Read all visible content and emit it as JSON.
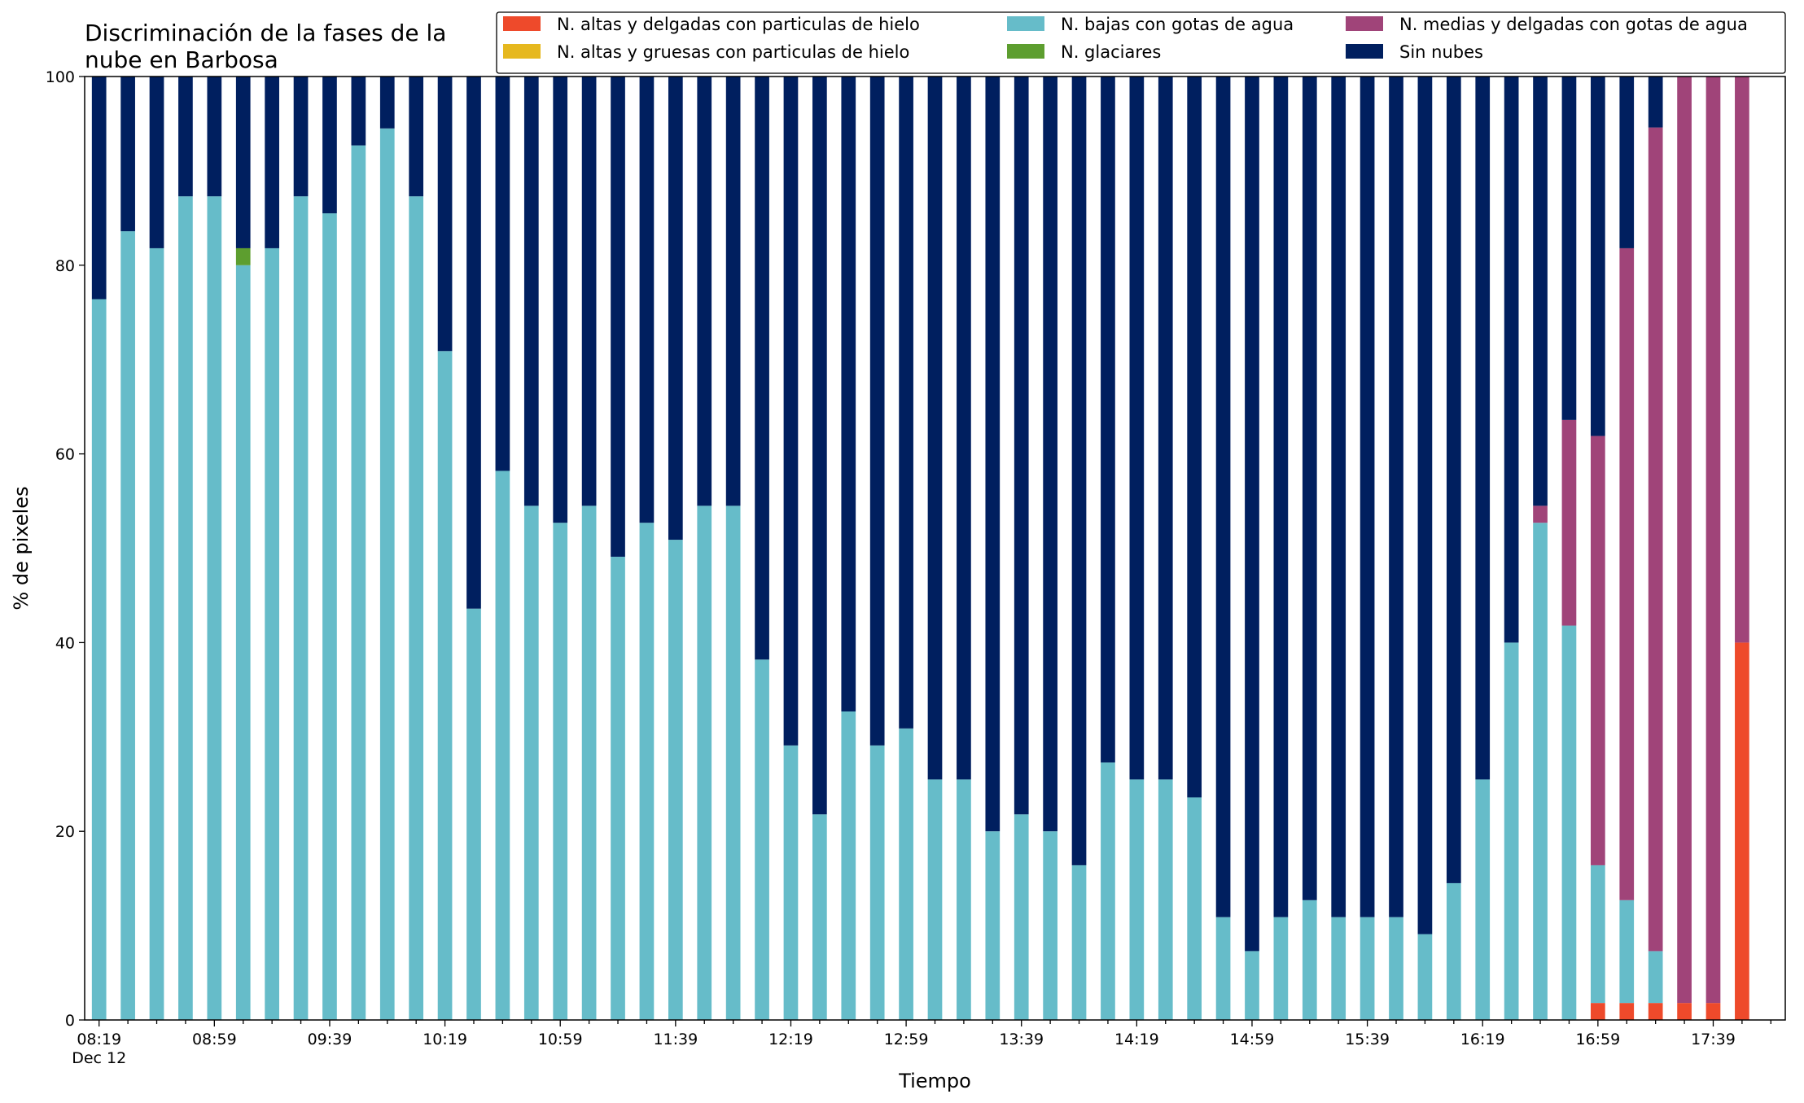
{
  "chart_data": {
    "type": "bar",
    "stacked": true,
    "title": "Discriminación de la fases de la nube en Barbosa",
    "title_lines": [
      "Discriminación de la fases de la",
      "nube en Barbosa"
    ],
    "xlabel": "Tiempo",
    "ylabel": "% de pixeles",
    "ylim": [
      0,
      100
    ],
    "yticks": [
      0,
      20,
      40,
      60,
      80,
      100
    ],
    "x_tick_labels": [
      {
        "index": 0,
        "label": "08:19",
        "sublabel": "Dec 12"
      },
      {
        "index": 4,
        "label": "08:59"
      },
      {
        "index": 8,
        "label": "09:39"
      },
      {
        "index": 12,
        "label": "10:19"
      },
      {
        "index": 16,
        "label": "10:59"
      },
      {
        "index": 20,
        "label": "11:39"
      },
      {
        "index": 24,
        "label": "12:19"
      },
      {
        "index": 28,
        "label": "12:59"
      },
      {
        "index": 32,
        "label": "13:39"
      },
      {
        "index": 36,
        "label": "14:19"
      },
      {
        "index": 40,
        "label": "14:59"
      },
      {
        "index": 44,
        "label": "15:39"
      },
      {
        "index": 48,
        "label": "16:19"
      },
      {
        "index": 52,
        "label": "16:59"
      },
      {
        "index": 56,
        "label": "17:39"
      }
    ],
    "legend_placement": "top-right",
    "grid": false,
    "series": [
      {
        "name": "N. altas y delgadas con particulas de hielo",
        "color": "#ee4a2b",
        "values": [
          0,
          0,
          0,
          0,
          0,
          0,
          0,
          0,
          0,
          0,
          0,
          0,
          0,
          0,
          0,
          0,
          0,
          0,
          0,
          0,
          0,
          0,
          0,
          0,
          0,
          0,
          0,
          0,
          0,
          0,
          0,
          0,
          0,
          0,
          0,
          0,
          0,
          0,
          0,
          0,
          0,
          0,
          0,
          0,
          0,
          0,
          0,
          0,
          0,
          0,
          0,
          0,
          1.8,
          1.8,
          1.8,
          1.8,
          1.8,
          40
        ]
      },
      {
        "name": "N. altas y gruesas con particulas de hielo",
        "color": "#e6b81e",
        "values": [
          0,
          0,
          0,
          0,
          0,
          0,
          0,
          0,
          0,
          0,
          0,
          0,
          0,
          0,
          0,
          0,
          0,
          0,
          0,
          0,
          0,
          0,
          0,
          0,
          0,
          0,
          0,
          0,
          0,
          0,
          0,
          0,
          0,
          0,
          0,
          0,
          0,
          0,
          0,
          0,
          0,
          0,
          0,
          0,
          0,
          0,
          0,
          0,
          0,
          0,
          0,
          0,
          0,
          0,
          0,
          0,
          0,
          0
        ]
      },
      {
        "name": "N. bajas con gotas de agua",
        "color": "#66bcc9",
        "values": [
          76.4,
          83.6,
          81.8,
          87.3,
          87.3,
          80,
          81.8,
          87.3,
          85.5,
          92.7,
          94.5,
          87.3,
          70.9,
          43.6,
          58.2,
          54.5,
          52.7,
          54.5,
          49.1,
          52.7,
          50.9,
          54.5,
          54.5,
          38.2,
          29.1,
          21.8,
          32.7,
          29.1,
          30.9,
          25.5,
          25.5,
          20,
          21.8,
          20,
          16.4,
          27.3,
          25.5,
          25.5,
          23.6,
          10.9,
          7.3,
          10.9,
          12.7,
          10.9,
          10.9,
          10.9,
          9.1,
          14.5,
          25.5,
          40,
          52.7,
          41.8,
          14.6,
          10.9,
          5.5,
          0,
          0,
          0
        ]
      },
      {
        "name": "N. glaciares",
        "color": "#5d9e2f",
        "values": [
          0,
          0,
          0,
          0,
          0,
          1.8,
          0,
          0,
          0,
          0,
          0,
          0,
          0,
          0,
          0,
          0,
          0,
          0,
          0,
          0,
          0,
          0,
          0,
          0,
          0,
          0,
          0,
          0,
          0,
          0,
          0,
          0,
          0,
          0,
          0,
          0,
          0,
          0,
          0,
          0,
          0,
          0,
          0,
          0,
          0,
          0,
          0,
          0,
          0,
          0,
          0,
          0,
          0,
          0,
          0,
          0,
          0,
          0
        ]
      },
      {
        "name": "N. medias y delgadas con gotas de agua",
        "color": "#a04479",
        "values": [
          0,
          0,
          0,
          0,
          0,
          0,
          0,
          0,
          0,
          0,
          0,
          0,
          0,
          0,
          0,
          0,
          0,
          0,
          0,
          0,
          0,
          0,
          0,
          0,
          0,
          0,
          0,
          0,
          0,
          0,
          0,
          0,
          0,
          0,
          0,
          0,
          0,
          0,
          0,
          0,
          0,
          0,
          0,
          0,
          0,
          0,
          0,
          0,
          0,
          0,
          1.8,
          21.8,
          45.5,
          69.1,
          87.3,
          98.2,
          98.2,
          60
        ]
      },
      {
        "name": "Sin nubes",
        "color": "#001f5f",
        "values": [
          23.6,
          16.4,
          18.2,
          12.7,
          12.7,
          18.2,
          18.2,
          12.7,
          14.5,
          7.3,
          5.5,
          12.7,
          29.1,
          56.4,
          41.8,
          45.5,
          47.3,
          45.5,
          50.9,
          47.3,
          49.1,
          45.5,
          45.5,
          61.8,
          70.9,
          78.2,
          67.3,
          70.9,
          69.1,
          74.5,
          74.5,
          80,
          78.2,
          80,
          83.6,
          72.7,
          74.5,
          74.5,
          76.4,
          89.1,
          92.7,
          89.1,
          87.3,
          89.1,
          89.1,
          89.1,
          90.9,
          85.5,
          74.5,
          60,
          45.5,
          36.4,
          38.1,
          18.2,
          5.4,
          0,
          0,
          0
        ]
      }
    ]
  }
}
